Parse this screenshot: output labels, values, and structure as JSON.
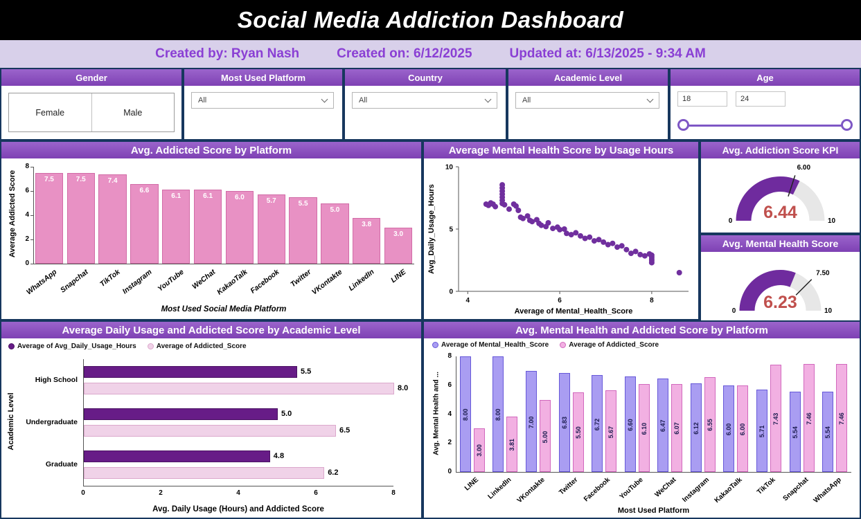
{
  "header": {
    "title": "Social Media Addiction Dashboard"
  },
  "subheader": {
    "created_by": "Created by: Ryan Nash",
    "created_on": "Created on: 6/12/2025",
    "updated_at": "Updated at: 6/13/2025 - 9:34 AM"
  },
  "filters": {
    "gender": {
      "label": "Gender",
      "options": [
        "Female",
        "Male"
      ]
    },
    "platform": {
      "label": "Most Used Platform",
      "value": "All"
    },
    "country": {
      "label": "Country",
      "value": "All"
    },
    "academic": {
      "label": "Academic Level",
      "value": "All"
    },
    "age": {
      "label": "Age",
      "min": "18",
      "max": "24"
    }
  },
  "colors": {
    "accent_purple": "#7e41b4",
    "navy_border": "#17375e",
    "subheader_bg": "#d8d0ea",
    "subheader_text": "#8a3fd4",
    "kpi_value_red": "#c0504d"
  },
  "chart_data": [
    {
      "id": "addicted_by_platform",
      "type": "bar",
      "title": "Avg. Addicted Score by Platform",
      "categories": [
        "WhatsApp",
        "Snapchat",
        "TikTok",
        "Instagram",
        "YouTube",
        "WeChat",
        "KakaoTalk",
        "Facebook",
        "Twitter",
        "VKontakte",
        "LinkedIn",
        "LINE"
      ],
      "values": [
        7.5,
        7.5,
        7.4,
        6.6,
        6.1,
        6.1,
        6.0,
        5.7,
        5.5,
        5.0,
        3.8,
        3.0
      ],
      "labels": [
        "7.5",
        "7.5",
        "7.4",
        "6.6",
        "6.1",
        "6.1",
        "6.0",
        "5.7",
        "5.5",
        "5.0",
        "3.8",
        "3.0"
      ],
      "xlabel": "Most Used Social Media Platform",
      "ylabel": "Average Addicted Score",
      "ylim": [
        0,
        8
      ],
      "yticks": [
        0,
        2,
        4,
        6,
        8
      ],
      "bar_color": "#e891c4",
      "bar_border": "#d16ba6"
    },
    {
      "id": "mental_by_usage_scatter",
      "type": "scatter",
      "title": "Average Mental Health Score by Usage Hours",
      "xlabel": "Average of Mental_Health_Score",
      "ylabel": "Avg_Daily_Usage_Hours",
      "xlim": [
        3.8,
        8.8
      ],
      "ylim": [
        0,
        10
      ],
      "xticks": [
        4,
        6,
        8
      ],
      "yticks": [
        0,
        5,
        10
      ],
      "dot_color": "#702f9e",
      "points": [
        [
          4.4,
          7.0
        ],
        [
          4.45,
          6.9
        ],
        [
          4.5,
          7.1
        ],
        [
          4.55,
          7.0
        ],
        [
          4.6,
          6.8
        ],
        [
          4.75,
          8.55
        ],
        [
          4.75,
          8.3
        ],
        [
          4.75,
          8.05
        ],
        [
          4.75,
          7.8
        ],
        [
          4.75,
          7.55
        ],
        [
          4.75,
          7.3
        ],
        [
          4.75,
          7.05
        ],
        [
          4.8,
          6.95
        ],
        [
          4.9,
          6.6
        ],
        [
          5.0,
          7.0
        ],
        [
          5.05,
          6.85
        ],
        [
          5.1,
          6.5
        ],
        [
          5.15,
          5.95
        ],
        [
          5.2,
          5.85
        ],
        [
          5.3,
          6.05
        ],
        [
          5.35,
          5.7
        ],
        [
          5.4,
          5.6
        ],
        [
          5.5,
          5.75
        ],
        [
          5.55,
          5.45
        ],
        [
          5.6,
          5.3
        ],
        [
          5.7,
          5.2
        ],
        [
          5.75,
          5.5
        ],
        [
          5.85,
          5.05
        ],
        [
          5.95,
          5.15
        ],
        [
          6.0,
          4.95
        ],
        [
          6.1,
          5.0
        ],
        [
          6.15,
          4.65
        ],
        [
          6.25,
          4.55
        ],
        [
          6.35,
          4.7
        ],
        [
          6.45,
          4.45
        ],
        [
          6.55,
          4.25
        ],
        [
          6.65,
          4.35
        ],
        [
          6.75,
          4.05
        ],
        [
          6.85,
          4.15
        ],
        [
          6.95,
          3.95
        ],
        [
          7.05,
          3.75
        ],
        [
          7.15,
          3.85
        ],
        [
          7.25,
          3.55
        ],
        [
          7.35,
          3.65
        ],
        [
          7.45,
          3.35
        ],
        [
          7.55,
          3.05
        ],
        [
          7.65,
          3.2
        ],
        [
          7.75,
          2.95
        ],
        [
          7.85,
          2.85
        ],
        [
          7.95,
          3.0
        ],
        [
          8.0,
          2.9
        ],
        [
          8.0,
          2.75
        ],
        [
          8.0,
          2.6
        ],
        [
          8.0,
          2.45
        ],
        [
          8.0,
          2.3
        ],
        [
          8.6,
          1.5
        ]
      ]
    },
    {
      "id": "addiction_kpi_gauge",
      "type": "gauge",
      "title": "Avg. Addiction Score KPI",
      "value": 6.44,
      "value_label": "6.44",
      "min": 0,
      "max": 10,
      "target": 6.0,
      "target_label": "6.00",
      "fill": "#6f2b9e",
      "value_color": "#c0504d"
    },
    {
      "id": "mental_health_gauge",
      "type": "gauge",
      "title": "Avg. Mental Health Score",
      "value": 6.23,
      "value_label": "6.23",
      "min": 0,
      "max": 10,
      "target": 7.5,
      "target_label": "7.50",
      "fill": "#6f2b9e",
      "value_color": "#c0504d"
    },
    {
      "id": "usage_addicted_by_academic",
      "type": "bar_h_grouped",
      "title": "Average Daily Usage and Addicted Score by Academic Level",
      "categories": [
        "High School",
        "Undergraduate",
        "Graduate"
      ],
      "series": [
        {
          "name": "Average of Avg_Daily_Usage_Hours",
          "color": "#671c87",
          "border": "#4a1263",
          "values": [
            5.5,
            5.0,
            4.8
          ],
          "labels": [
            "5.5",
            "5.0",
            "4.8"
          ]
        },
        {
          "name": "Average of Addicted_Score",
          "color": "#f0d2e8",
          "border": "#dba8cc",
          "values": [
            8.0,
            6.5,
            6.2
          ],
          "labels": [
            "8.0",
            "6.5",
            "6.2"
          ]
        }
      ],
      "xlabel": "Avg. Daily Usage (Hours) and Addicted Score",
      "ylabel": "Academic Level",
      "xlim": [
        0,
        8
      ],
      "xticks": [
        0,
        2,
        4,
        6,
        8
      ]
    },
    {
      "id": "mental_addicted_by_platform",
      "type": "bar_grouped",
      "title": "Avg. Mental Health and Addicted Score by Platform",
      "categories": [
        "LINE",
        "LinkedIn",
        "VKontakte",
        "Twitter",
        "Facebook",
        "YouTube",
        "WeChat",
        "Instagram",
        "KakaoTalk",
        "TikTok",
        "Snapchat",
        "WhatsApp"
      ],
      "series": [
        {
          "name": "Average of Mental_Health_Score",
          "color": "#a99df2",
          "border": "#6658d8",
          "values": [
            8.0,
            8.0,
            7.0,
            6.83,
            6.72,
            6.6,
            6.47,
            6.12,
            6.0,
            5.71,
            5.54,
            5.54
          ],
          "labels": [
            "8.00",
            "8.00",
            "7.00",
            "6.83",
            "6.72",
            "6.60",
            "6.47",
            "6.12",
            "6.00",
            "5.71",
            "5.54",
            "5.54"
          ]
        },
        {
          "name": "Average of Addicted_Score",
          "color": "#f2b0e2",
          "border": "#d168bd",
          "values": [
            3.0,
            3.81,
            5.0,
            5.5,
            5.67,
            6.1,
            6.07,
            6.55,
            6.0,
            7.43,
            7.46,
            7.46
          ],
          "labels": [
            "3.00",
            "3.81",
            "5.00",
            "5.50",
            "5.67",
            "6.10",
            "6.07",
            "6.55",
            "6.00",
            "7.43",
            "7.46",
            "7.46"
          ]
        }
      ],
      "xlabel": "Most Used Platform",
      "ylabel": "Avg. Mental Health and ...",
      "ylim": [
        0,
        8
      ],
      "yticks": [
        0,
        2,
        4,
        6,
        8
      ]
    }
  ]
}
